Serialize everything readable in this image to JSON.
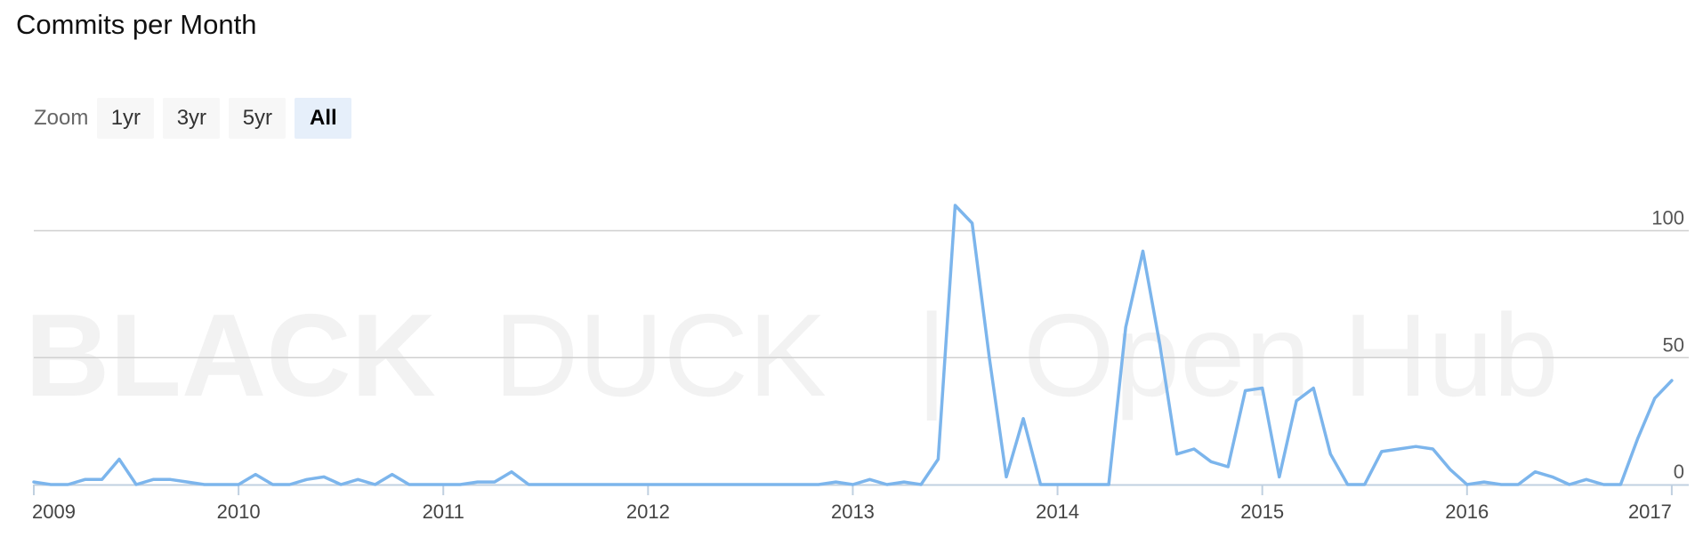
{
  "title": "Commits per Month",
  "zoom": {
    "label": "Zoom",
    "buttons": [
      {
        "label": "1yr",
        "active": false
      },
      {
        "label": "3yr",
        "active": false
      },
      {
        "label": "5yr",
        "active": false
      },
      {
        "label": "All",
        "active": true
      }
    ]
  },
  "watermark": {
    "brand_bold": "BLACK",
    "brand_light": "DUCK",
    "separator": "|",
    "product": "Open Hub"
  },
  "colors": {
    "line": "#7cb5ec",
    "grid": "#d0d0d0",
    "axis": "#c0d0e0"
  },
  "chart_data": {
    "type": "line",
    "title": "Commits per Month",
    "xlabel": "",
    "ylabel": "",
    "xlim": [
      2009,
      2017.083
    ],
    "ylim": [
      0,
      110
    ],
    "grid": true,
    "y_ticks": [
      0,
      50,
      100
    ],
    "x_ticks": [
      2009,
      2010,
      2011,
      2012,
      2013,
      2014,
      2015,
      2016,
      2017
    ],
    "series": [
      {
        "values": [
          [
            2009.0,
            1
          ],
          [
            2009.083,
            0
          ],
          [
            2009.167,
            0
          ],
          [
            2009.25,
            2
          ],
          [
            2009.333,
            2
          ],
          [
            2009.417,
            10
          ],
          [
            2009.5,
            0
          ],
          [
            2009.583,
            2
          ],
          [
            2009.667,
            2
          ],
          [
            2009.75,
            1
          ],
          [
            2009.833,
            0
          ],
          [
            2009.917,
            0
          ],
          [
            2010.0,
            0
          ],
          [
            2010.083,
            4
          ],
          [
            2010.167,
            0
          ],
          [
            2010.25,
            0
          ],
          [
            2010.333,
            2
          ],
          [
            2010.417,
            3
          ],
          [
            2010.5,
            0
          ],
          [
            2010.583,
            2
          ],
          [
            2010.667,
            0
          ],
          [
            2010.75,
            4
          ],
          [
            2010.833,
            0
          ],
          [
            2010.917,
            0
          ],
          [
            2011.0,
            0
          ],
          [
            2011.083,
            0
          ],
          [
            2011.167,
            1
          ],
          [
            2011.25,
            1
          ],
          [
            2011.333,
            5
          ],
          [
            2011.417,
            0
          ],
          [
            2011.5,
            0
          ],
          [
            2011.583,
            0
          ],
          [
            2011.667,
            0
          ],
          [
            2011.75,
            0
          ],
          [
            2011.833,
            0
          ],
          [
            2011.917,
            0
          ],
          [
            2012.0,
            0
          ],
          [
            2012.083,
            0
          ],
          [
            2012.167,
            0
          ],
          [
            2012.25,
            0
          ],
          [
            2012.333,
            0
          ],
          [
            2012.417,
            0
          ],
          [
            2012.5,
            0
          ],
          [
            2012.583,
            0
          ],
          [
            2012.667,
            0
          ],
          [
            2012.75,
            0
          ],
          [
            2012.833,
            0
          ],
          [
            2012.917,
            1
          ],
          [
            2013.0,
            0
          ],
          [
            2013.083,
            2
          ],
          [
            2013.167,
            0
          ],
          [
            2013.25,
            1
          ],
          [
            2013.333,
            0
          ],
          [
            2013.417,
            10
          ],
          [
            2013.5,
            110
          ],
          [
            2013.583,
            103
          ],
          [
            2013.667,
            50
          ],
          [
            2013.75,
            3
          ],
          [
            2013.833,
            26
          ],
          [
            2013.917,
            0
          ],
          [
            2014.0,
            0
          ],
          [
            2014.083,
            0
          ],
          [
            2014.167,
            0
          ],
          [
            2014.25,
            0
          ],
          [
            2014.333,
            62
          ],
          [
            2014.417,
            92
          ],
          [
            2014.5,
            55
          ],
          [
            2014.583,
            12
          ],
          [
            2014.667,
            14
          ],
          [
            2014.75,
            9
          ],
          [
            2014.833,
            7
          ],
          [
            2014.917,
            37
          ],
          [
            2015.0,
            38
          ],
          [
            2015.083,
            3
          ],
          [
            2015.167,
            33
          ],
          [
            2015.25,
            38
          ],
          [
            2015.333,
            12
          ],
          [
            2015.417,
            0
          ],
          [
            2015.5,
            0
          ],
          [
            2015.583,
            13
          ],
          [
            2015.667,
            14
          ],
          [
            2015.75,
            15
          ],
          [
            2015.833,
            14
          ],
          [
            2015.917,
            6
          ],
          [
            2016.0,
            0
          ],
          [
            2016.083,
            1
          ],
          [
            2016.167,
            0
          ],
          [
            2016.25,
            0
          ],
          [
            2016.333,
            5
          ],
          [
            2016.417,
            3
          ],
          [
            2016.5,
            0
          ],
          [
            2016.583,
            2
          ],
          [
            2016.667,
            0
          ],
          [
            2016.75,
            0
          ],
          [
            2016.833,
            18
          ],
          [
            2016.917,
            34
          ],
          [
            2017.0,
            41
          ]
        ]
      }
    ]
  }
}
